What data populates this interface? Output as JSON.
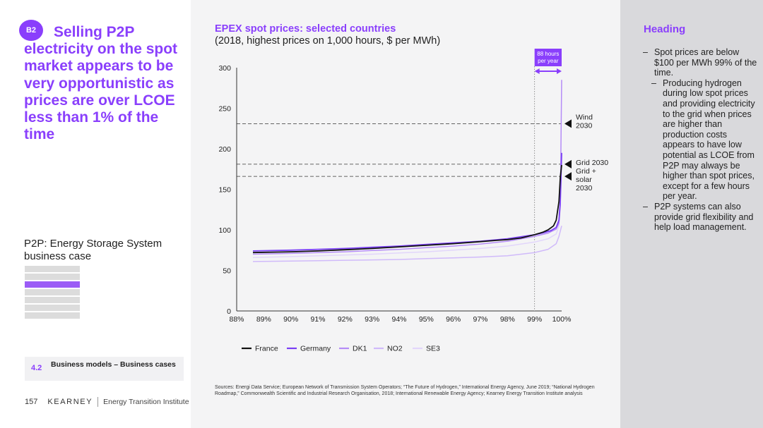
{
  "left": {
    "badge": "B2",
    "headline": "Selling P2P electricity on the spot market appears to be very opportunistic as prices are over LCOE less than 1% of the time",
    "subtitle": "P2P: Energy Storage System business case",
    "section": {
      "number": "4.2",
      "label": "Business models – Business cases"
    },
    "footer": {
      "page": "157",
      "brand": "KEARNEY",
      "institute": "Energy Transition Institute"
    }
  },
  "right": {
    "heading": "Heading",
    "bullets": [
      {
        "level": 1,
        "text": "Spot prices are below $100 per MWh 99% of the time."
      },
      {
        "level": 2,
        "text": "Producing hydrogen during low spot prices and providing electricity to the grid when prices are higher than production costs appears to have low potential as LCOE from P2P may always be higher than spot prices, except for a few hours per year."
      },
      {
        "level": 1,
        "text": "P2P systems can also provide grid flexibility and help load management."
      }
    ]
  },
  "chart": {
    "title": "EPEX spot prices: selected countries",
    "subtitle": "(2018, highest prices on 1,000 hours, $ per MWh)",
    "sources": "Sources: Energi Data Service; European Network of Transmission System Operators; “The Future of Hydrogen,” International Energy Agency, June 2019; “National Hydrogen Roadmap,” Commonwealth Scientific and Industrial Research Organisation, 2018; International Renewable Energy Agency; Kearney Energy Transition Institute analysis"
  },
  "chart_data": {
    "type": "line",
    "x_tick_labels": [
      "88%",
      "89%",
      "90%",
      "91%",
      "92%",
      "93%",
      "94%",
      "95%",
      "96%",
      "97%",
      "98%",
      "99%",
      "100%"
    ],
    "xlim": [
      88,
      100
    ],
    "ylim": [
      0,
      300
    ],
    "y_ticks": [
      0,
      50,
      100,
      150,
      200,
      250,
      300
    ],
    "legend_position": "bottom",
    "series": [
      {
        "name": "France",
        "color": "#111111",
        "width": 1.8,
        "points": [
          [
            88.6,
            72
          ],
          [
            90,
            73
          ],
          [
            91,
            74
          ],
          [
            92,
            75.5
          ],
          [
            93,
            77
          ],
          [
            94,
            79
          ],
          [
            95,
            81
          ],
          [
            96,
            83
          ],
          [
            97,
            85.5
          ],
          [
            97.6,
            87
          ],
          [
            98,
            88
          ],
          [
            98.5,
            90
          ],
          [
            99,
            94
          ],
          [
            99.3,
            97
          ],
          [
            99.5,
            100
          ],
          [
            99.7,
            105
          ],
          [
            99.8,
            112
          ],
          [
            99.9,
            135
          ],
          [
            99.95,
            165
          ],
          [
            100,
            180
          ]
        ]
      },
      {
        "name": "Germany",
        "color": "#7a3ff5",
        "width": 1.8,
        "points": [
          [
            88.6,
            74
          ],
          [
            90,
            75
          ],
          [
            91,
            76
          ],
          [
            92,
            77
          ],
          [
            93,
            78.5
          ],
          [
            94,
            80
          ],
          [
            95,
            82
          ],
          [
            96,
            84
          ],
          [
            97,
            86
          ],
          [
            98,
            89
          ],
          [
            99,
            94
          ],
          [
            99.4,
            97
          ],
          [
            99.6,
            99
          ],
          [
            99.8,
            103
          ],
          [
            99.9,
            112
          ],
          [
            99.95,
            135
          ],
          [
            100,
            195
          ]
        ]
      },
      {
        "name": "DK1",
        "color": "#b58cf7",
        "width": 1.5,
        "points": [
          [
            88.6,
            70
          ],
          [
            90,
            71
          ],
          [
            91,
            72
          ],
          [
            92,
            73
          ],
          [
            93,
            74.5
          ],
          [
            94,
            76
          ],
          [
            95,
            78
          ],
          [
            96,
            80
          ],
          [
            97,
            82.5
          ],
          [
            98,
            86
          ],
          [
            99,
            92
          ],
          [
            99.5,
            96
          ],
          [
            99.8,
            101
          ],
          [
            99.9,
            108
          ],
          [
            99.95,
            130
          ],
          [
            100,
            285
          ]
        ]
      },
      {
        "name": "NO2",
        "color": "#d0bafa",
        "width": 1.5,
        "points": [
          [
            88.6,
            61
          ],
          [
            90,
            61.5
          ],
          [
            91,
            62
          ],
          [
            92,
            62.5
          ],
          [
            93,
            63
          ],
          [
            94,
            63.5
          ],
          [
            95,
            64.5
          ],
          [
            96,
            65.5
          ],
          [
            97,
            66.5
          ],
          [
            98,
            68
          ],
          [
            99,
            72
          ],
          [
            99.5,
            76
          ],
          [
            99.8,
            83
          ],
          [
            99.9,
            92
          ],
          [
            100,
            105
          ]
        ]
      },
      {
        "name": "SE3",
        "color": "#e2d6fb",
        "width": 1.5,
        "points": [
          [
            88.6,
            66
          ],
          [
            90,
            67
          ],
          [
            91,
            68
          ],
          [
            92,
            69
          ],
          [
            93,
            70
          ],
          [
            94,
            71.5
          ],
          [
            95,
            73
          ],
          [
            96,
            75
          ],
          [
            97,
            77
          ],
          [
            98,
            80
          ],
          [
            99,
            85
          ],
          [
            99.5,
            89
          ],
          [
            99.8,
            95
          ],
          [
            99.9,
            105
          ],
          [
            100,
            165
          ]
        ]
      }
    ],
    "reference_lines": [
      {
        "label": "Wind 2030",
        "value": 231
      },
      {
        "label": "Grid 2030",
        "value": 181
      },
      {
        "label": "Grid + solar 2030",
        "value": 166
      }
    ],
    "annotation": {
      "label": "88 hours per year",
      "x_from": 99,
      "x_to": 100
    },
    "colors": {
      "accent": "#8a3ffc",
      "panel_right": "#d9d9dc",
      "panel_main": "#f4f4f5"
    }
  }
}
